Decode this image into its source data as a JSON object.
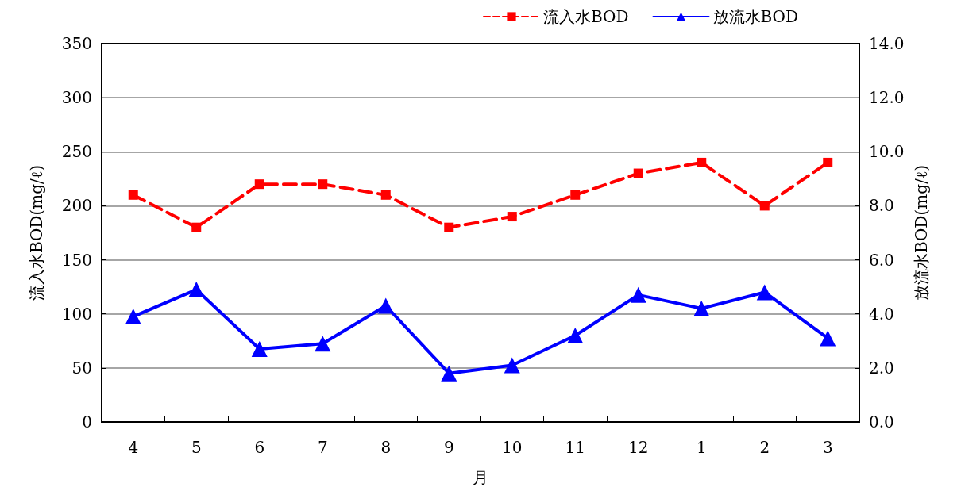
{
  "chart_data": {
    "type": "line",
    "xlabel": "月",
    "ylabel": "流入水BOD(mg/ℓ)",
    "y2label": "放流水BOD(mg/ℓ)",
    "categories": [
      "4",
      "5",
      "6",
      "7",
      "8",
      "9",
      "10",
      "11",
      "12",
      "1",
      "2",
      "3"
    ],
    "series": [
      {
        "name": "流入水BOD",
        "color": "#ff0000",
        "marker": "square",
        "line_style": "dashed",
        "values": [
          210,
          180,
          220,
          220,
          210,
          180,
          190,
          210,
          230,
          240,
          200,
          240
        ]
      },
      {
        "name": "放流水BOD",
        "color": "#0000ff",
        "marker": "triangle",
        "line_style": "solid",
        "axis": "y2",
        "values": [
          3.9,
          4.9,
          2.7,
          2.9,
          4.3,
          1.8,
          2.1,
          3.2,
          4.7,
          4.2,
          4.8,
          3.1
        ]
      }
    ],
    "ylim": [
      0,
      350
    ],
    "yticks": [
      0,
      50,
      100,
      150,
      200,
      250,
      300,
      350
    ],
    "y2lim": [
      0,
      14
    ],
    "y2ticks": [
      {
        "value": 0,
        "label": "0.0"
      },
      {
        "value": 2,
        "label": "2.0"
      },
      {
        "value": 4,
        "label": "4.0"
      },
      {
        "value": 6,
        "label": "6.0"
      },
      {
        "value": 8,
        "label": "8.0"
      },
      {
        "value": 10,
        "label": "10.0"
      },
      {
        "value": 12,
        "label": "12.0"
      },
      {
        "value": 14,
        "label": "14.0"
      }
    ],
    "grid": "y",
    "legend": "top right"
  }
}
